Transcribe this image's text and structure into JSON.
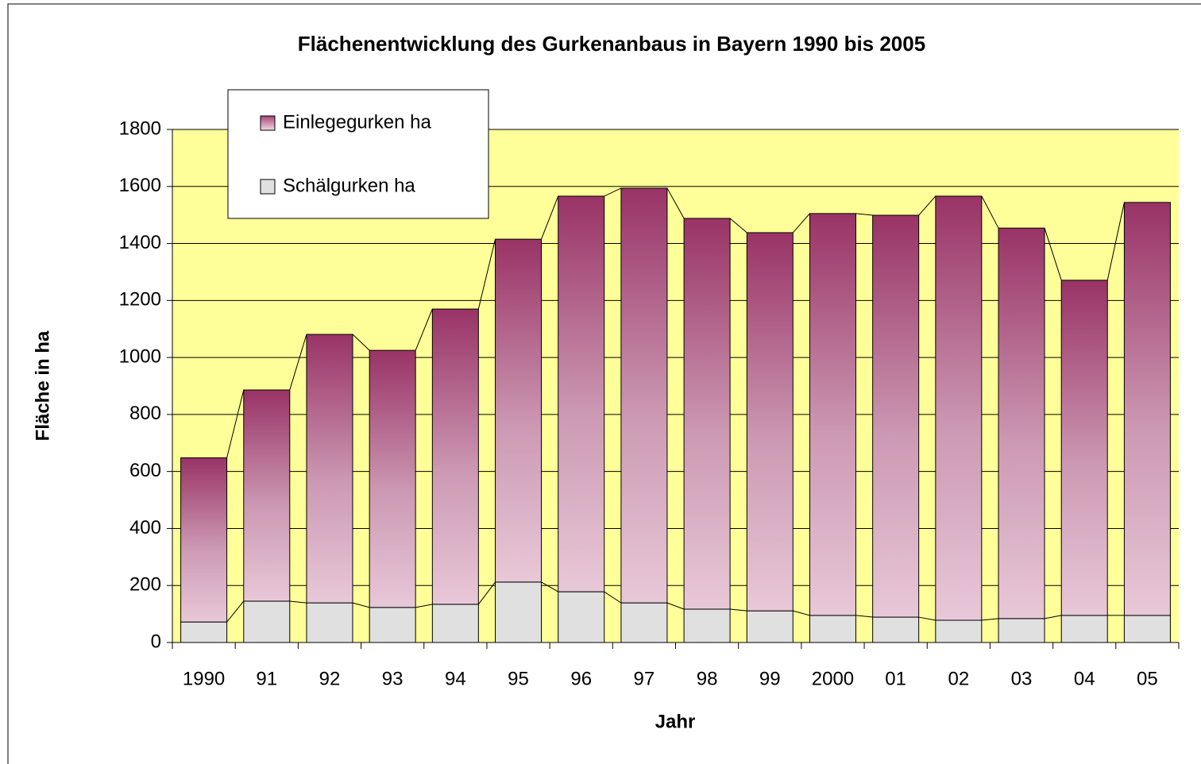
{
  "chart_data": {
    "type": "stacked-bar",
    "title": "Flächenentwicklung des Gurkenanbaus in Bayern 1990 bis 2005",
    "x_label": "Jahr",
    "y_label": "Fläche in ha",
    "categories": [
      "1990",
      "91",
      "92",
      "93",
      "94",
      "95",
      "96",
      "97",
      "98",
      "99",
      "2000",
      "01",
      "02",
      "03",
      "04",
      "05"
    ],
    "series": [
      {
        "name": "Schälgurken ha",
        "color": "#e0e0e0",
        "values": [
          72,
          145,
          139,
          123,
          134,
          212,
          178,
          139,
          117,
          111,
          95,
          89,
          78,
          84,
          95,
          95
        ]
      },
      {
        "name": "Einlegegurken ha",
        "color": "#993366",
        "values": [
          576,
          741,
          942,
          902,
          1036,
          1203,
          1388,
          1455,
          1371,
          1327,
          1410,
          1410,
          1488,
          1370,
          1176,
          1449
        ]
      }
    ],
    "ylim": [
      0,
      1800
    ],
    "yticks": [
      0,
      200,
      400,
      600,
      800,
      1000,
      1200,
      1400,
      1600,
      1800
    ],
    "grid": true,
    "plot_background": "#ffff99"
  }
}
